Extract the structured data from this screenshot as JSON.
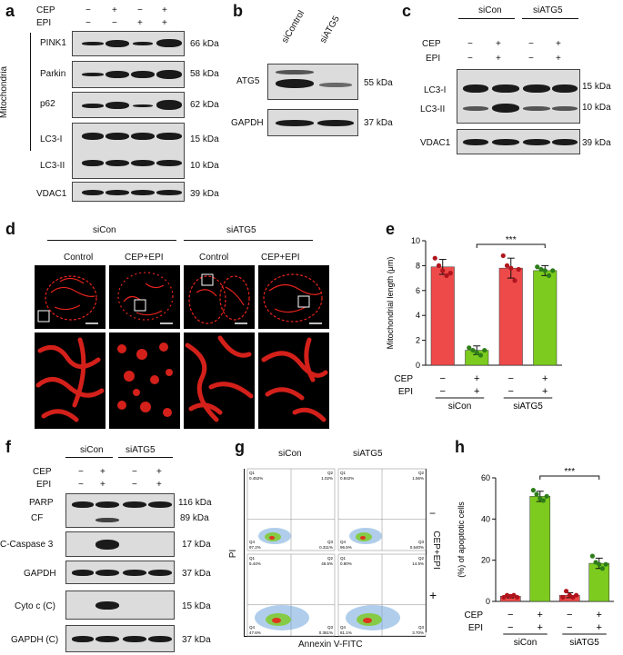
{
  "panels": {
    "a": "a",
    "b": "b",
    "c": "c",
    "d": "d",
    "e": "e",
    "f": "f",
    "g": "g",
    "h": "h"
  },
  "common": {
    "cep": "CEP",
    "epi": "EPI",
    "minus": "−",
    "plus": "+",
    "siCon": "siCon",
    "siATG5": "siATG5"
  },
  "panel_a": {
    "side_label": "Mitochondria",
    "cep_signs": [
      "−",
      "+",
      "−",
      "+"
    ],
    "epi_signs": [
      "−",
      "−",
      "+",
      "+"
    ],
    "rows": [
      {
        "label": "PINK1",
        "kda": "66 kDa"
      },
      {
        "label": "Parkin",
        "kda": "58 kDa"
      },
      {
        "label": "p62",
        "kda": "62 kDa"
      },
      {
        "label": "LC3-I",
        "kda": "15 kDa"
      },
      {
        "label": "LC3-II",
        "kda": "10 kDa"
      },
      {
        "label": "VDAC1",
        "kda": "39 kDa"
      }
    ]
  },
  "panel_b": {
    "lanes": [
      "siControl",
      "siATG5"
    ],
    "rows": [
      {
        "label": "ATG5",
        "kda": "55 kDa"
      },
      {
        "label": "GAPDH",
        "kda": "37 kDa"
      }
    ]
  },
  "panel_c": {
    "cep_signs": [
      "−",
      "+",
      "−",
      "+"
    ],
    "epi_signs": [
      "−",
      "+",
      "−",
      "+"
    ],
    "rows": [
      {
        "label": "LC3-I",
        "kda": "15 kDa"
      },
      {
        "label": "LC3-II",
        "kda": "10 kDa"
      },
      {
        "label": "VDAC1",
        "kda": "39 kDa"
      }
    ]
  },
  "panel_d": {
    "conditions": [
      "Control",
      "CEP+EPI",
      "Control",
      "CEP+EPI"
    ]
  },
  "panel_f": {
    "cep_signs": [
      "−",
      "+",
      "−",
      "+"
    ],
    "epi_signs": [
      "−",
      "+",
      "−",
      "+"
    ],
    "rows": [
      {
        "label": "PARP",
        "kda": "116 kDa"
      },
      {
        "label": "CF",
        "kda": "89 kDa"
      },
      {
        "label": "C-Caspase 3",
        "kda": "17 kDa"
      },
      {
        "label": "GAPDH",
        "kda": "37 kDa"
      },
      {
        "label": "Cyto c (C)",
        "kda": "15 kDa"
      },
      {
        "label": "GAPDH (C)",
        "kda": "37 kDa"
      }
    ]
  },
  "panel_g": {
    "xlabel": "Annexin V-FITC",
    "ylabel": "PI",
    "side_label": "CEP+EPI",
    "row_signs": [
      "−",
      "+"
    ],
    "quads": [
      {
        "q1": "Q1",
        "v1": "0.452%",
        "q2": "Q2",
        "v2": "1.02%",
        "q3": "Q3",
        "v3": "0.311%",
        "q4": "Q4",
        "v4": "97.2%"
      },
      {
        "q1": "Q1",
        "v1": "0.842%",
        "q2": "Q2",
        "v2": "1.56%",
        "q3": "Q3",
        "v3": "0.540%",
        "q4": "Q4",
        "v4": "96.5%"
      },
      {
        "q1": "Q1",
        "v1": "5.44%",
        "q2": "Q2",
        "v2": "46.5%",
        "q3": "Q3",
        "v3": "0.361%",
        "q4": "Q4",
        "v4": "47.6%"
      },
      {
        "q1": "Q1",
        "v1": "0.90%",
        "q2": "Q2",
        "v2": "14.5%",
        "q3": "Q3",
        "v3": "3.70%",
        "q4": "Q4",
        "v4": "81.1%"
      }
    ]
  },
  "chart_data": [
    {
      "type": "bar",
      "panel": "e",
      "ylabel": "Mitochondrial length (μm)",
      "ylim": [
        0,
        10
      ],
      "yticks": [
        0,
        2,
        4,
        6,
        8,
        10
      ],
      "categories": [
        "siCon −/−",
        "siCon +/+",
        "siATG5 −/−",
        "siATG5 +/+"
      ],
      "values": [
        7.9,
        1.2,
        7.8,
        7.6
      ],
      "errors": [
        0.6,
        0.35,
        0.8,
        0.4
      ],
      "points": [
        [
          8.6,
          8.0,
          7.6,
          7.2,
          7.4
        ],
        [
          1.4,
          1.2,
          1.0,
          0.8,
          1.2
        ],
        [
          8.8,
          8.0,
          7.8,
          6.8,
          7.7
        ],
        [
          7.9,
          7.7,
          7.6,
          7.2,
          7.6
        ]
      ],
      "colors": [
        "#ef4a4a",
        "#7ccb1e",
        "#ef4a4a",
        "#7ccb1e"
      ],
      "dot_colors": [
        "#b0141c",
        "#2e7d1a",
        "#b0141c",
        "#2e7d1a"
      ],
      "significance": "***",
      "groups": [
        "siCon",
        "siATG5"
      ],
      "row1_label": "CEP",
      "row2_label": "EPI",
      "row1": [
        "−",
        "+",
        "−",
        "+"
      ],
      "row2": [
        "−",
        "+",
        "−",
        "+"
      ]
    },
    {
      "type": "bar",
      "panel": "h",
      "ylabel": "(%) of apoptotic cells",
      "ylim": [
        0,
        60
      ],
      "yticks": [
        0,
        20,
        40,
        60
      ],
      "categories": [
        "siCon −/−",
        "siCon +/+",
        "siATG5 −/−",
        "siATG5 +/+"
      ],
      "values": [
        2.5,
        51,
        3,
        18.5
      ],
      "errors": [
        0.8,
        2.5,
        1.2,
        2.5
      ],
      "points": [
        [
          2,
          3,
          2.5,
          3,
          2
        ],
        [
          54,
          52,
          50,
          49,
          51
        ],
        [
          2,
          5,
          3,
          2,
          3
        ],
        [
          22,
          19,
          18,
          16,
          18
        ]
      ],
      "colors": [
        "#ef4a4a",
        "#7ccb1e",
        "#ef4a4a",
        "#7ccb1e"
      ],
      "dot_colors": [
        "#b0141c",
        "#2e7d1a",
        "#b0141c",
        "#2e7d1a"
      ],
      "significance": "***",
      "groups": [
        "siCon",
        "siATG5"
      ],
      "row1_label": "CEP",
      "row2_label": "EPI",
      "row1": [
        "−",
        "+",
        "−",
        "+"
      ],
      "row2": [
        "−",
        "+",
        "−",
        "+"
      ]
    }
  ]
}
